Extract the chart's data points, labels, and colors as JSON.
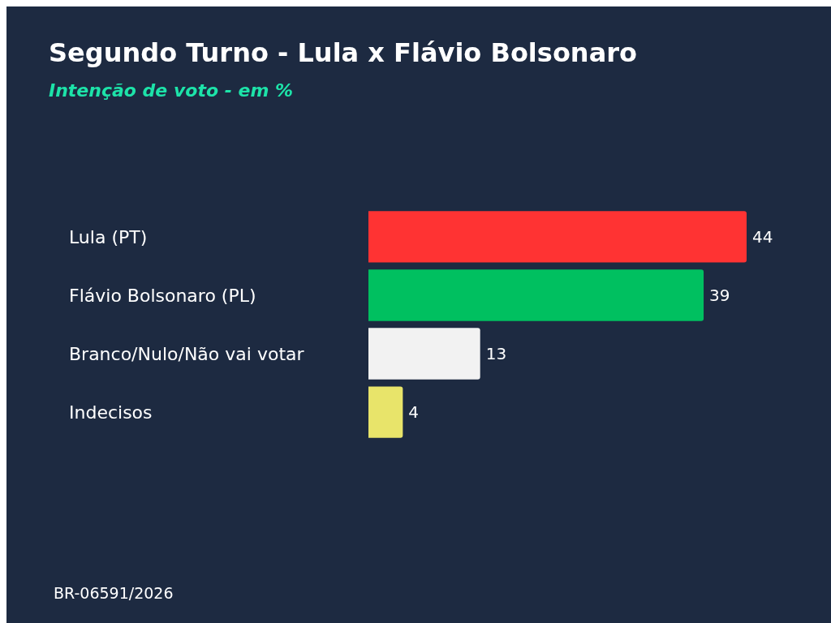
{
  "chart_data": {
    "type": "bar",
    "orientation": "horizontal",
    "title": "Segundo Turno - Lula x Flávio Bolsonaro",
    "subtitle": "Intenção de voto - em %",
    "categories": [
      "Lula (PT)",
      "Flávio Bolsonaro (PL)",
      "Branco/Nulo/Não vai votar",
      "Indecisos"
    ],
    "values": [
      44,
      39,
      13,
      4
    ],
    "colors": [
      "#ff3333",
      "#00c060",
      "#f2f2f2",
      "#e8e46a"
    ],
    "data_labels": true,
    "annotations": [
      "BR-06591/2026"
    ]
  }
}
